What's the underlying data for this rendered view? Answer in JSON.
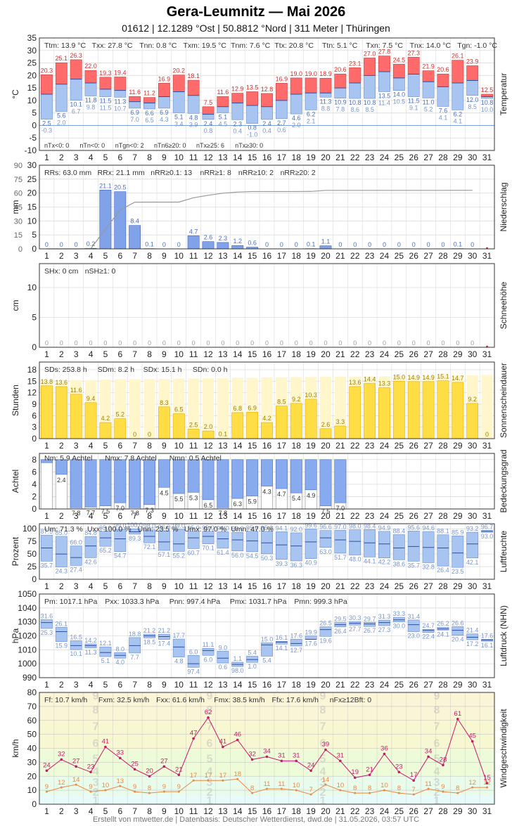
{
  "header": {
    "title": "Gera-Leumnitz  —  Mai 2026",
    "subtitle": "01612  |  12.1289 °Ost  |  50.8812 °Nord  |  311 Meter  |  Thüringen"
  },
  "footer": "Erstellt von mtwetter.de | Datenbasis: Deutscher Wetterdienst, dwd.de | 31.05.2026, 03:57 UTC",
  "days": [
    1,
    2,
    3,
    4,
    5,
    6,
    7,
    8,
    9,
    10,
    11,
    12,
    13,
    14,
    15,
    16,
    17,
    18,
    19,
    20,
    21,
    22,
    23,
    24,
    25,
    26,
    27,
    28,
    29,
    30,
    31
  ],
  "colors": {
    "red": "#ff6b6b",
    "blue": "#a8c4f0",
    "rain": "#7fa2e8",
    "sun": "#ffdd44",
    "grid": "#dcdcdc",
    "gust": "#c8186e",
    "wind": "#ee8844"
  },
  "chart_data": [
    {
      "id": "temp",
      "type": "bar",
      "side_label": "Temperatur",
      "ylabel": "°C",
      "ylim": [
        -10,
        35
      ],
      "yticks": [
        -10,
        -5,
        0,
        5,
        10,
        15,
        20,
        25,
        30,
        35
      ],
      "stats": [
        "Ttm: 13.9 °C",
        "Txx: 27.8 °C",
        "Tnn: 0.8 °C",
        "Txm: 19.5 °C",
        "Tnm: 7.6 °C",
        "Ttx: 20.8 °C",
        "Ttn: 5.1 °C",
        "Txn: 7.5 °C",
        "Tnx: 14.0 °C",
        "Tgn: -1.0 °C"
      ],
      "footer_stats": [
        "nTx<0: 0",
        "nTn<0: 0",
        "nTgn<0: 2",
        "nTn6≥20: 0",
        "nTx≥25: 6",
        "nTx≥30: 0"
      ],
      "tmax": [
        20.3,
        25.1,
        26.3,
        22.0,
        19.3,
        19.4,
        11.6,
        11.2,
        16.9,
        20.2,
        18.1,
        7.5,
        11.6,
        12.9,
        13.5,
        12.8,
        16.9,
        19.0,
        19.0,
        18.9,
        20.6,
        23.1,
        27.0,
        27.8,
        24.5,
        27.3,
        21.9,
        20.6,
        26.1,
        23.9,
        12.5
      ],
      "tmean": [
        12.5,
        16.5,
        18.5,
        17.0,
        14.5,
        14.0,
        9.5,
        9.0,
        11.5,
        13.5,
        12.0,
        4.5,
        7.5,
        9.0,
        8.0,
        7.5,
        10.0,
        12.5,
        13.0,
        13.0,
        15.0,
        17.0,
        20.0,
        21.5,
        19.0,
        20.5,
        17.5,
        15.5,
        17.0,
        18.0,
        11.5
      ],
      "tmin": [
        2.5,
        5.6,
        10.1,
        11.8,
        11.5,
        11.3,
        6.9,
        6.6,
        6.9,
        5.1,
        4.8,
        2.4,
        5.1,
        2.3,
        0.8,
        2.4,
        2.7,
        4.6,
        6.2,
        11.3,
        10.9,
        10.8,
        10.8,
        13.5,
        14.0,
        11.5,
        11.0,
        7.6,
        6.2,
        12.0,
        10.8
      ],
      "tmin_label2": [
        -0.3,
        2.0,
        6.7,
        9.8,
        11.5,
        10.7,
        7.0,
        6.5,
        4.3,
        3.4,
        3.9,
        0.8,
        4.5,
        0.4,
        -1.0,
        0.4,
        0.6,
        2.0,
        2.1,
        8.8,
        7.8,
        8.6,
        8.5,
        11.4,
        10.5,
        9.1,
        5.2,
        4.1,
        4.1,
        8.5,
        10.0
      ]
    },
    {
      "id": "rain",
      "type": "bar",
      "side_label": "Niederschlag",
      "ylabel": "mm",
      "ylim": [
        0,
        30
      ],
      "yticks": [
        0,
        5,
        10,
        15,
        20,
        25,
        30
      ],
      "yticks_right": [
        0,
        15,
        30,
        45,
        60,
        75,
        90
      ],
      "stats": [
        "RRs: 63.0 mm",
        "RRx: 21.1 mm",
        "nRR≥0.1: 13",
        "nRR≥1: 8",
        "nRR≥10: 2",
        "nRR≥20: 2"
      ],
      "values": [
        0,
        0,
        0,
        0.2,
        21.1,
        20.5,
        8.4,
        0.1,
        0,
        0,
        4.7,
        2.6,
        2.3,
        1.2,
        0.6,
        0,
        0,
        0,
        0.1,
        1.1,
        0,
        0,
        0,
        0,
        0,
        0,
        0,
        0,
        0.1,
        0,
        null
      ],
      "cumulative": [
        0,
        0,
        0,
        0.2,
        21.3,
        41.8,
        50.2,
        50.3,
        50.3,
        50.3,
        55.0,
        57.6,
        59.9,
        61.1,
        61.7,
        61.7,
        61.7,
        61.7,
        61.8,
        62.9,
        62.9,
        62.9,
        62.9,
        62.9,
        62.9,
        62.9,
        62.9,
        62.9,
        63.0,
        63.0
      ]
    },
    {
      "id": "snow",
      "type": "bar",
      "side_label": "Schneehöhe",
      "ylabel": "cm",
      "ylim": [
        0,
        14
      ],
      "yticks": [
        0,
        5,
        10
      ],
      "stats": [
        "SHx: 0 cm",
        "nSH≥1: 0"
      ],
      "values": [
        0,
        0,
        0,
        0,
        0,
        0,
        0,
        0,
        0,
        0,
        0,
        0,
        0,
        0,
        0,
        0,
        0,
        0,
        0,
        0,
        0,
        0,
        0,
        0,
        0,
        0,
        0,
        0,
        0,
        0,
        null
      ]
    },
    {
      "id": "sun",
      "type": "bar",
      "side_label": "Sonnenscheindauer",
      "ylabel": "Stunden",
      "ylim": [
        0,
        20
      ],
      "yticks": [
        0,
        3,
        6,
        9,
        12,
        15,
        18
      ],
      "stats": [
        "SDs: 253.8 h",
        "SDm: 8.2 h",
        "SDx: 15.1 h",
        "SDn: 0.0 h"
      ],
      "values": [
        13.8,
        13.6,
        11.6,
        9.4,
        4.2,
        5.2,
        0,
        0,
        8.3,
        6.5,
        2.5,
        2.0,
        0.1,
        6.8,
        6.9,
        4.2,
        8.5,
        9.2,
        10.3,
        2.6,
        3.3,
        13.6,
        14.4,
        13.3,
        15.0,
        14.9,
        14.9,
        15.1,
        14.7,
        9.2,
        0
      ],
      "possible": [
        15.2,
        15.2,
        15.3,
        15.3,
        15.4,
        15.5,
        15.5,
        15.6,
        15.6,
        15.7,
        15.7,
        15.8,
        15.8,
        15.9,
        15.9,
        16.0,
        16.0,
        16.1,
        16.1,
        16.2,
        16.2,
        16.2,
        16.3,
        16.3,
        16.4,
        16.4,
        16.4,
        16.5,
        16.5,
        16.5,
        16.6
      ]
    },
    {
      "id": "cloud",
      "type": "bar",
      "side_label": "Bedeckungsgrad",
      "ylabel": "Achtel",
      "ylim": [
        0,
        9
      ],
      "yticks": [
        0,
        2,
        4,
        6,
        8
      ],
      "stats": [
        "Nm: 5.9 Achtel",
        "Nmx: 7.8 Achtel",
        "Nmn: 0.5 Achtel"
      ],
      "values": [
        0.5,
        2.4,
        7.8,
        7.7,
        7.5,
        7.0,
        7.8,
        7.3,
        4.5,
        5.5,
        5.3,
        6.5,
        7.8,
        6.3,
        5.9,
        4.3,
        4.7,
        5.4,
        4.9,
        7.5,
        7.0
      ]
    },
    {
      "id": "humidity",
      "type": "bar",
      "side_label": "Luftfeuchte",
      "ylabel": "Prozent",
      "ylim": [
        0,
        110
      ],
      "yticks": [
        0,
        25,
        50,
        75,
        100
      ],
      "stats": [
        "Um: 71.3 %",
        "Uxx: 100.0 %",
        "Unn: 23.5 %",
        "Umx: 97.0 %",
        "Umn: 47.0 %"
      ],
      "umax": [
        87.5,
        85.0,
        66.0,
        84.8,
        95.0,
        99.0,
        100.0,
        98.0,
        96.0,
        99.0,
        95.0,
        95.0,
        94.0,
        93.0,
        95.0,
        95.0,
        94.1,
        92.0,
        99.6,
        96.6,
        97.0,
        98.0,
        98.4,
        94.9,
        88.4,
        95.6,
        94.6,
        88.1,
        85.9,
        93.2,
        96.7
      ],
      "umean": [
        62,
        50,
        43,
        66,
        82,
        80,
        94,
        85,
        74,
        70,
        82,
        85,
        80,
        78,
        76,
        72,
        68,
        66,
        74,
        82,
        78,
        75,
        72,
        70,
        62,
        65,
        63,
        62,
        52,
        70,
        95
      ],
      "umin": [
        35.7,
        24.3,
        27.4,
        42.6,
        65.2,
        54.7,
        89.3,
        72.1,
        57.1,
        55.2,
        60.7,
        70.1,
        61.4,
        56.0,
        54.5,
        50.3,
        39.3,
        36.3,
        40.9,
        63.0,
        51.7,
        48.0,
        44.1,
        42.2,
        38.6,
        35.7,
        32.8,
        26.4,
        23.5,
        42.1,
        93.0
      ]
    },
    {
      "id": "pressure",
      "type": "bar",
      "side_label": "Luftdruck (NHN)",
      "ylabel": "hPa",
      "ylim": [
        990,
        1050
      ],
      "yticks": [
        990,
        1000,
        1010,
        1020,
        1030,
        1040,
        1050
      ],
      "stats": [
        "Pm: 1017.1 hPa",
        "Pxx: 1033.3 hPa",
        "Pnn: 997.4 hPa",
        "Pmx: 1031.7 hPa",
        "Pmn: 999.3 hPa"
      ],
      "pmax": [
        1031.6,
        1026.1,
        1016.5,
        1014.2,
        1012.1,
        1008.0,
        1018.8,
        1021.2,
        1021.2,
        1017.7,
        1006.0,
        1011.1,
        1009.0,
        1001.1,
        1005.4,
        1015.0,
        1016.1,
        1017.6,
        1019.9,
        1026.5,
        1029.5,
        1030.3,
        1029.7,
        1031.3,
        1033.3,
        1031.4,
        1024.7,
        1026.2,
        1026.6,
        1021.4,
        1017.6
      ],
      "pmean": [
        1029.5,
        1023,
        1013,
        1013,
        1008,
        1006,
        1013,
        1020,
        1019.5,
        1012,
        1000,
        1009.5,
        1004,
        999.5,
        1003,
        1013.5,
        1015.5,
        1014.5,
        1017.5,
        1024.5,
        1028,
        1029,
        1028.5,
        1029.5,
        1031.5,
        1028,
        1024,
        1025,
        1024,
        1019,
        1017
      ],
      "pmin": [
        1025.3,
        1015.9,
        1010.1,
        1011.3,
        1005.1,
        1004.0,
        1007.7,
        1018.5,
        1017.4,
        1004.8,
        997.4,
        1006.0,
        1000.6,
        998.0,
        1001.0,
        1005.4,
        1014.1,
        1012.7,
        1017.6,
        1019.6,
        1026.4,
        1027.7,
        1026.7,
        1027.3,
        1030.0,
        1023.0,
        1022.4,
        1024.1,
        1020.4,
        1017.2,
        1016.1
      ]
    },
    {
      "id": "wind",
      "type": "line",
      "side_label": "Windgeschwindigkeit",
      "ylabel": "km/h",
      "ylim": [
        0,
        80
      ],
      "yticks": [
        0,
        10,
        20,
        30,
        40,
        50,
        60,
        70,
        80
      ],
      "stats": [
        "Ff: 10.7 km/h",
        "Fxm: 32.5 km/h",
        "Fxx: 61.6 km/h",
        "Fmx: 38.5 km/h",
        "Ffx: 17.6 km/h",
        "nFx≥12Bft: 0"
      ],
      "beaufort": [
        "1",
        "2",
        "3",
        "4",
        "5",
        "6",
        "7",
        "8",
        "9"
      ],
      "gust": [
        24,
        32,
        27,
        23,
        41,
        33,
        25,
        20,
        27,
        21,
        47,
        62,
        41,
        46,
        32,
        34,
        31,
        31,
        24,
        39,
        31,
        19,
        21,
        36,
        23,
        17,
        34,
        28,
        61,
        45,
        15
      ],
      "mean": [
        9,
        12,
        14,
        9,
        10,
        13,
        9,
        8,
        9,
        9,
        17,
        17,
        17,
        18,
        8,
        11,
        11,
        10,
        7,
        14,
        10,
        8,
        8,
        10,
        8,
        7,
        11,
        9,
        8,
        12,
        12
      ]
    }
  ]
}
